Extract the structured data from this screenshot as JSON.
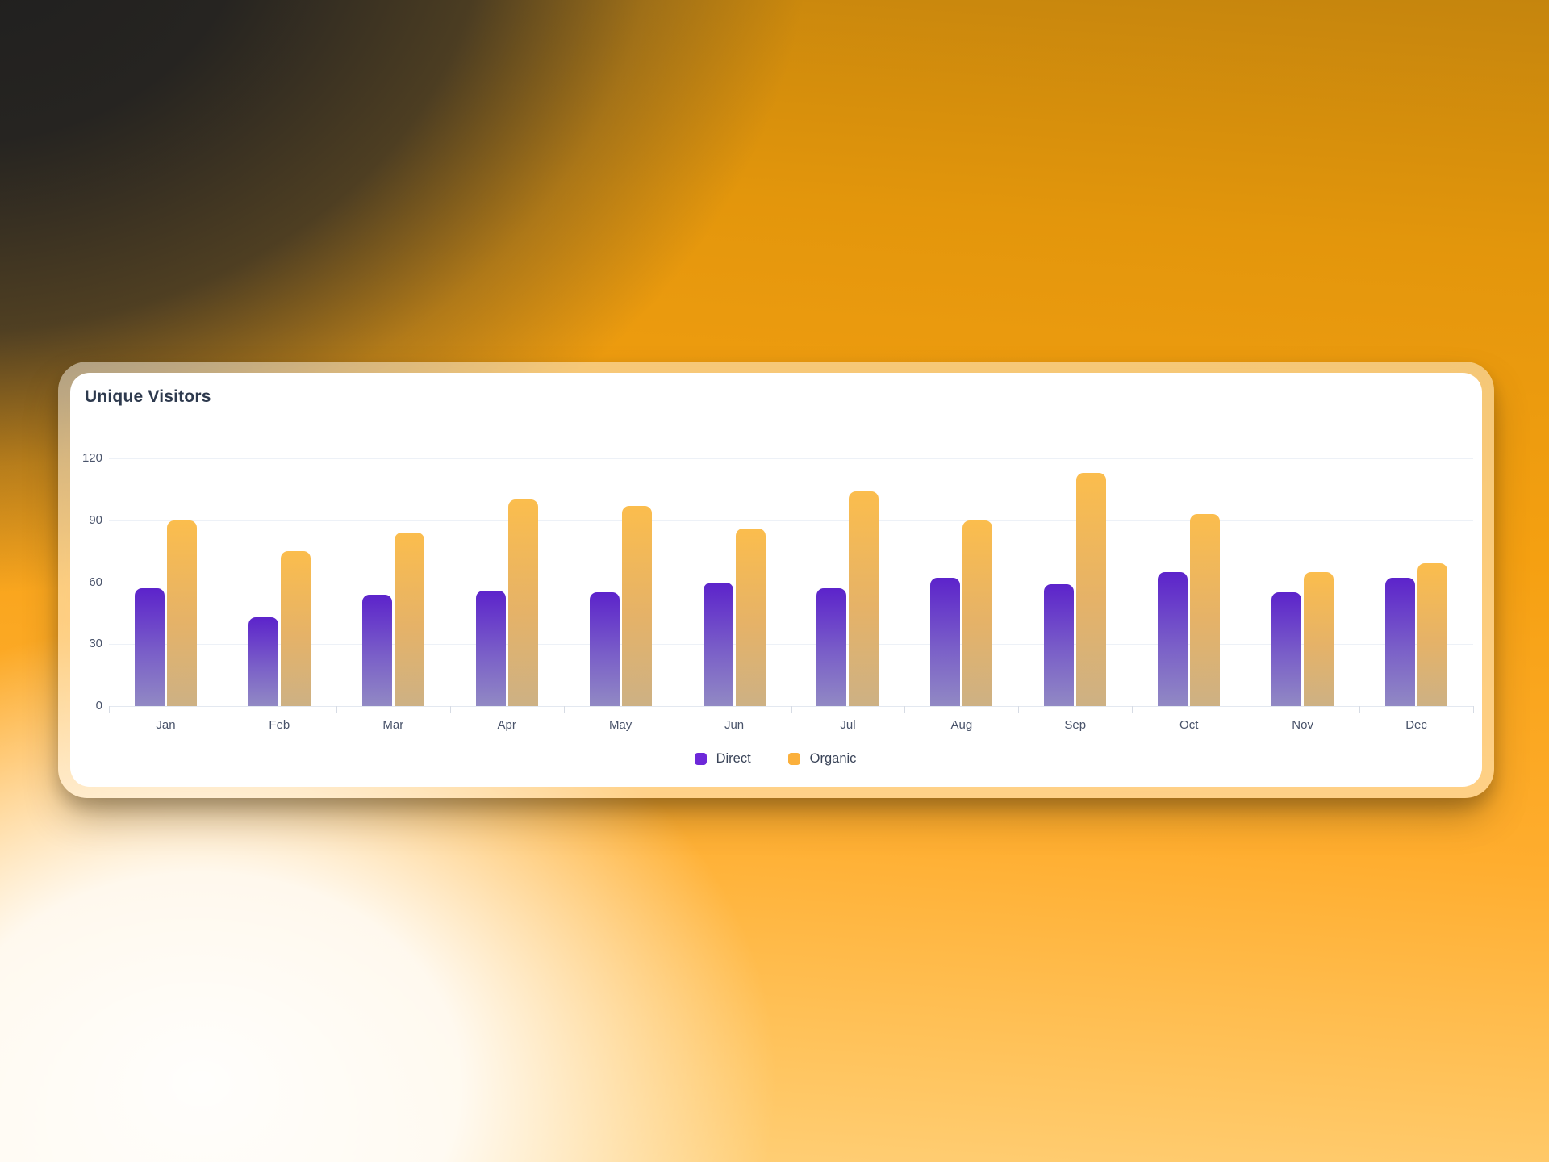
{
  "card": {
    "title": "Unique Visitors"
  },
  "chart_data": {
    "type": "bar",
    "title": "Unique Visitors",
    "categories": [
      "Jan",
      "Feb",
      "Mar",
      "Apr",
      "May",
      "Jun",
      "Jul",
      "Aug",
      "Sep",
      "Oct",
      "Nov",
      "Dec"
    ],
    "series": [
      {
        "name": "Direct",
        "values": [
          57,
          43,
          54,
          56,
          55,
          60,
          57,
          62,
          59,
          65,
          55,
          62
        ],
        "color_top": "#5c23cb",
        "color_mid": "#7a5fc8",
        "color_bottom": "#9189c4",
        "legend_color": "#6d28d9"
      },
      {
        "name": "Organic",
        "values": [
          90,
          75,
          84,
          100,
          97,
          86,
          104,
          90,
          113,
          93,
          65,
          69
        ],
        "color_top": "#fbbd4d",
        "color_mid": "#e5b268",
        "color_bottom": "#cdb184",
        "legend_color": "#fbb03c"
      }
    ],
    "xlabel": "",
    "ylabel": "",
    "ylim": [
      0,
      120
    ],
    "yticks": [
      0,
      30,
      60,
      90,
      120
    ],
    "grid": true,
    "legend_position": "bottom"
  },
  "background": {
    "top_left_color": "#222222",
    "orange_color": "#f5a011",
    "bottom_left_color": "#f2f1f0"
  }
}
